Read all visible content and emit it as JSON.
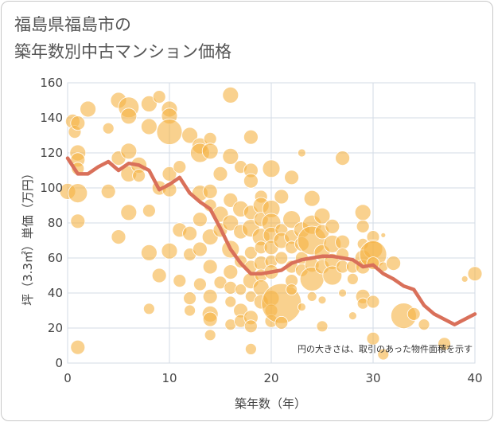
{
  "title_lines": [
    "福島県福島市の",
    "築年数別中古マンション価格"
  ],
  "colors": {
    "bubble": "#f5b342",
    "line": "#d9705a",
    "grid": "#d3dbe6",
    "plot_bg": "#ffffff"
  },
  "chart_data": {
    "type": "scatter",
    "title": "福島県福島市の築年数別中古マンション価格",
    "xlabel": "築年数（年）",
    "ylabel": "坪（3.3㎡）単価（万円）",
    "xlim": [
      0,
      40
    ],
    "ylim": [
      0,
      160
    ],
    "x_ticks": [
      "0",
      "10",
      "20",
      "30",
      "40"
    ],
    "y_ticks": [
      "0",
      "20",
      "40",
      "60",
      "80",
      "100",
      "120",
      "140",
      "160"
    ],
    "grid": true,
    "note": "円の大きさは、取引のあった物件面積を示す",
    "bubbles": [
      [
        0,
        98,
        10
      ],
      [
        0.5,
        138,
        9
      ],
      [
        0.7,
        132,
        8
      ],
      [
        1,
        137,
        9
      ],
      [
        1,
        120,
        10
      ],
      [
        1,
        116,
        9
      ],
      [
        1,
        111,
        8
      ],
      [
        1,
        97,
        12
      ],
      [
        1,
        81,
        9
      ],
      [
        1,
        9,
        9
      ],
      [
        2,
        145,
        10
      ],
      [
        4,
        134,
        7
      ],
      [
        4,
        98,
        9
      ],
      [
        5,
        150,
        10
      ],
      [
        5,
        117,
        9
      ],
      [
        5,
        72,
        9
      ],
      [
        6,
        146,
        13
      ],
      [
        6,
        141,
        10
      ],
      [
        6,
        121,
        10
      ],
      [
        6,
        108,
        10
      ],
      [
        6,
        86,
        10
      ],
      [
        7,
        113,
        10
      ],
      [
        7,
        107,
        8
      ],
      [
        8,
        148,
        10
      ],
      [
        8,
        135,
        10
      ],
      [
        8,
        63,
        10
      ],
      [
        8,
        31,
        7
      ],
      [
        8,
        87,
        8
      ],
      [
        9,
        152,
        8
      ],
      [
        9,
        100,
        9
      ],
      [
        9,
        50,
        9
      ],
      [
        10,
        145,
        10
      ],
      [
        10,
        141,
        10
      ],
      [
        10,
        132,
        16
      ],
      [
        10,
        108,
        9
      ],
      [
        10,
        99,
        9
      ],
      [
        10,
        64,
        10
      ],
      [
        11,
        112,
        8
      ],
      [
        11,
        76,
        9
      ],
      [
        11,
        47,
        8
      ],
      [
        12,
        130,
        10
      ],
      [
        12,
        74,
        9
      ],
      [
        12,
        62,
        8
      ],
      [
        12,
        37,
        8
      ],
      [
        12,
        30,
        7
      ],
      [
        13,
        124,
        10
      ],
      [
        13,
        120,
        12
      ],
      [
        13,
        97,
        10
      ],
      [
        13,
        82,
        9
      ],
      [
        13,
        65,
        9
      ],
      [
        13,
        45,
        8
      ],
      [
        14,
        128,
        8
      ],
      [
        14,
        121,
        10
      ],
      [
        14,
        98,
        9
      ],
      [
        14,
        90,
        8
      ],
      [
        14,
        72,
        10
      ],
      [
        14,
        55,
        9
      ],
      [
        14,
        38,
        9
      ],
      [
        14,
        28,
        10
      ],
      [
        14,
        25,
        9
      ],
      [
        14,
        16,
        7
      ],
      [
        15,
        108,
        9
      ],
      [
        15,
        85,
        10
      ],
      [
        15,
        76,
        9
      ],
      [
        15,
        46,
        8
      ],
      [
        16,
        153,
        10
      ],
      [
        16,
        118,
        10
      ],
      [
        16,
        93,
        9
      ],
      [
        16,
        80,
        10
      ],
      [
        16,
        65,
        11
      ],
      [
        16,
        52,
        9
      ],
      [
        16,
        43,
        8
      ],
      [
        16,
        35,
        7
      ],
      [
        16,
        22,
        7
      ],
      [
        17,
        112,
        8
      ],
      [
        17,
        88,
        10
      ],
      [
        17,
        75,
        9
      ],
      [
        17,
        58,
        8
      ],
      [
        17,
        42,
        7
      ],
      [
        17,
        30,
        9
      ],
      [
        17,
        24,
        8
      ],
      [
        18,
        129,
        9
      ],
      [
        18,
        110,
        9
      ],
      [
        18,
        104,
        9
      ],
      [
        18,
        86,
        9
      ],
      [
        18,
        77,
        11
      ],
      [
        18,
        63,
        8
      ],
      [
        18,
        55,
        8
      ],
      [
        18,
        47,
        10
      ],
      [
        18,
        38,
        7
      ],
      [
        18,
        26,
        9
      ],
      [
        18,
        21,
        8
      ],
      [
        18,
        8,
        7
      ],
      [
        19,
        95,
        8
      ],
      [
        19,
        90,
        10
      ],
      [
        19,
        82,
        9
      ],
      [
        19,
        72,
        11
      ],
      [
        19,
        66,
        8
      ],
      [
        19,
        57,
        9
      ],
      [
        19,
        50,
        8
      ],
      [
        19,
        43,
        10
      ],
      [
        19,
        35,
        9
      ],
      [
        20,
        111,
        11
      ],
      [
        20,
        88,
        11
      ],
      [
        20,
        80,
        12
      ],
      [
        20,
        73,
        10
      ],
      [
        20,
        66,
        9
      ],
      [
        20,
        58,
        8
      ],
      [
        20,
        52,
        9
      ],
      [
        20,
        37,
        10
      ],
      [
        20,
        30,
        8
      ],
      [
        20,
        24,
        8
      ],
      [
        21,
        95,
        9
      ],
      [
        21,
        76,
        8
      ],
      [
        21,
        70,
        10
      ],
      [
        21,
        60,
        8
      ],
      [
        21,
        34,
        25
      ],
      [
        21,
        23,
        8
      ],
      [
        22,
        106,
        9
      ],
      [
        22,
        82,
        11
      ],
      [
        22,
        72,
        9
      ],
      [
        22,
        66,
        8
      ],
      [
        22,
        55,
        8
      ],
      [
        22,
        47,
        8
      ],
      [
        22,
        42,
        7
      ],
      [
        23,
        120,
        5
      ],
      [
        23,
        76,
        10
      ],
      [
        23,
        68,
        9
      ],
      [
        23,
        60,
        8
      ],
      [
        23,
        53,
        8
      ],
      [
        23,
        32,
        5
      ],
      [
        24,
        94,
        10
      ],
      [
        24,
        79,
        12
      ],
      [
        24,
        70,
        18
      ],
      [
        24,
        56,
        9
      ],
      [
        24,
        48,
        15
      ],
      [
        24,
        38,
        6
      ],
      [
        25,
        84,
        10
      ],
      [
        25,
        75,
        9
      ],
      [
        25,
        63,
        10
      ],
      [
        25,
        55,
        9
      ],
      [
        25,
        36,
        5
      ],
      [
        25,
        21,
        7
      ],
      [
        26,
        78,
        9
      ],
      [
        26,
        68,
        11
      ],
      [
        26,
        58,
        10
      ],
      [
        26,
        50,
        12
      ],
      [
        27,
        117,
        9
      ],
      [
        27,
        69,
        9
      ],
      [
        27,
        62,
        8
      ],
      [
        27,
        55,
        8
      ],
      [
        27,
        40,
        5
      ],
      [
        28,
        55,
        8
      ],
      [
        28,
        48,
        7
      ],
      [
        28,
        27,
        5
      ],
      [
        29,
        86,
        10
      ],
      [
        29,
        78,
        8
      ],
      [
        29,
        68,
        7
      ],
      [
        29,
        60,
        10
      ],
      [
        29,
        55,
        9
      ],
      [
        29,
        38,
        9
      ],
      [
        29,
        34,
        7
      ],
      [
        30,
        72,
        8
      ],
      [
        30,
        65,
        12
      ],
      [
        30,
        62,
        17
      ],
      [
        30,
        57,
        8
      ],
      [
        30,
        35,
        8
      ],
      [
        30,
        14,
        8
      ],
      [
        31,
        5,
        7
      ],
      [
        31,
        55,
        6
      ],
      [
        31,
        73,
        3
      ],
      [
        32,
        57,
        9
      ],
      [
        33,
        27,
        16
      ],
      [
        34,
        28,
        8
      ],
      [
        35,
        22,
        7
      ],
      [
        37,
        11,
        8
      ],
      [
        39,
        48,
        4
      ],
      [
        40,
        51,
        9
      ]
    ],
    "series": [
      {
        "type": "line",
        "x": [
          0,
          1,
          2,
          3,
          4,
          5,
          6,
          7,
          8,
          9,
          10,
          11,
          12,
          13,
          14,
          15,
          16,
          17,
          18,
          19,
          20,
          21,
          22,
          23,
          24,
          25,
          26,
          27,
          28,
          29,
          30,
          31,
          32,
          33,
          34,
          35,
          36,
          37,
          38,
          39,
          40
        ],
        "values": [
          117,
          108,
          108,
          112,
          115,
          110,
          114,
          113,
          110,
          99,
          102,
          106,
          97,
          92,
          88,
          77,
          65,
          57,
          51,
          51,
          52,
          53,
          57,
          59,
          60,
          61,
          61,
          60,
          59,
          55,
          56,
          51,
          48,
          44,
          42,
          33,
          28,
          25,
          22,
          25,
          28
        ]
      }
    ]
  }
}
